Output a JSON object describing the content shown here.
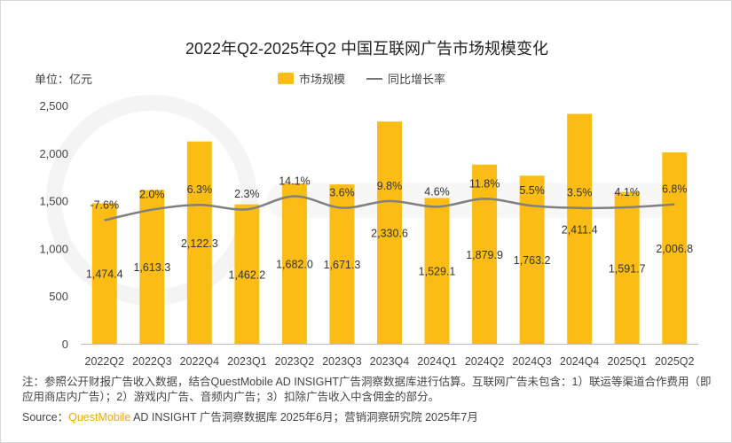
{
  "chart_data": {
    "type": "bar+line",
    "title": "2022年Q2-2025年Q2 中国互联网广告市场规模变化",
    "unit_label": "单位：亿元",
    "categories": [
      "2022Q2",
      "2022Q3",
      "2022Q4",
      "2023Q1",
      "2023Q2",
      "2023Q3",
      "2023Q4",
      "2024Q1",
      "2024Q2",
      "2024Q3",
      "2024Q4",
      "2025Q1",
      "2025Q2"
    ],
    "series": [
      {
        "name": "市场规模",
        "type": "bar",
        "color": "#fbbd14",
        "values": [
          1474.4,
          1613.3,
          2122.3,
          1462.2,
          1682.0,
          1671.3,
          2330.6,
          1529.1,
          1879.9,
          1763.2,
          2411.4,
          1591.7,
          2006.8
        ],
        "labels": [
          "1,474.4",
          "1,613.3",
          "2,122.3",
          "1,462.2",
          "1,682.0",
          "1,671.3",
          "2,330.6",
          "1,529.1",
          "1,879.9",
          "1,763.2",
          "2,411.4",
          "1,591.7",
          "2,006.8"
        ]
      },
      {
        "name": "同比增长率",
        "type": "line",
        "color": "#808080",
        "axis": "secondary",
        "values": [
          -7.6,
          2.0,
          6.3,
          2.3,
          14.1,
          3.6,
          9.8,
          4.6,
          11.8,
          5.5,
          3.5,
          4.1,
          6.8
        ],
        "labels": [
          "-7.6%",
          "2.0%",
          "6.3%",
          "2.3%",
          "14.1%",
          "3.6%",
          "9.8%",
          "4.6%",
          "11.8%",
          "5.5%",
          "3.5%",
          "4.1%",
          "6.8%"
        ]
      }
    ],
    "ylim": [
      0,
      2500
    ],
    "yticks": [
      0,
      500,
      1000,
      1500,
      2000,
      2500
    ],
    "ytick_labels": [
      "0",
      "500",
      "1,000",
      "1,500",
      "2,000",
      "2,500"
    ],
    "y2lim": [
      -119,
      96
    ],
    "grid": false,
    "legend_placement": "top-center"
  },
  "note": "注：参照公开财报广告收入数据，结合QuestMobile AD INSIGHT广告洞察数据库进行估算。互联网广告未包含：1）联运等渠道合作费用（即应用商店内广告）；2）游戏内广告、音频内广告；3）扣除广告收入中含佣金的部分。",
  "source": {
    "prefix": "Source：",
    "brand": "QuestMobile",
    "rest": " AD INSIGHT 广告洞察数据库 2025年6月；营销洞察研究院 2025年7月"
  },
  "watermark": "QUESTMOBILE"
}
